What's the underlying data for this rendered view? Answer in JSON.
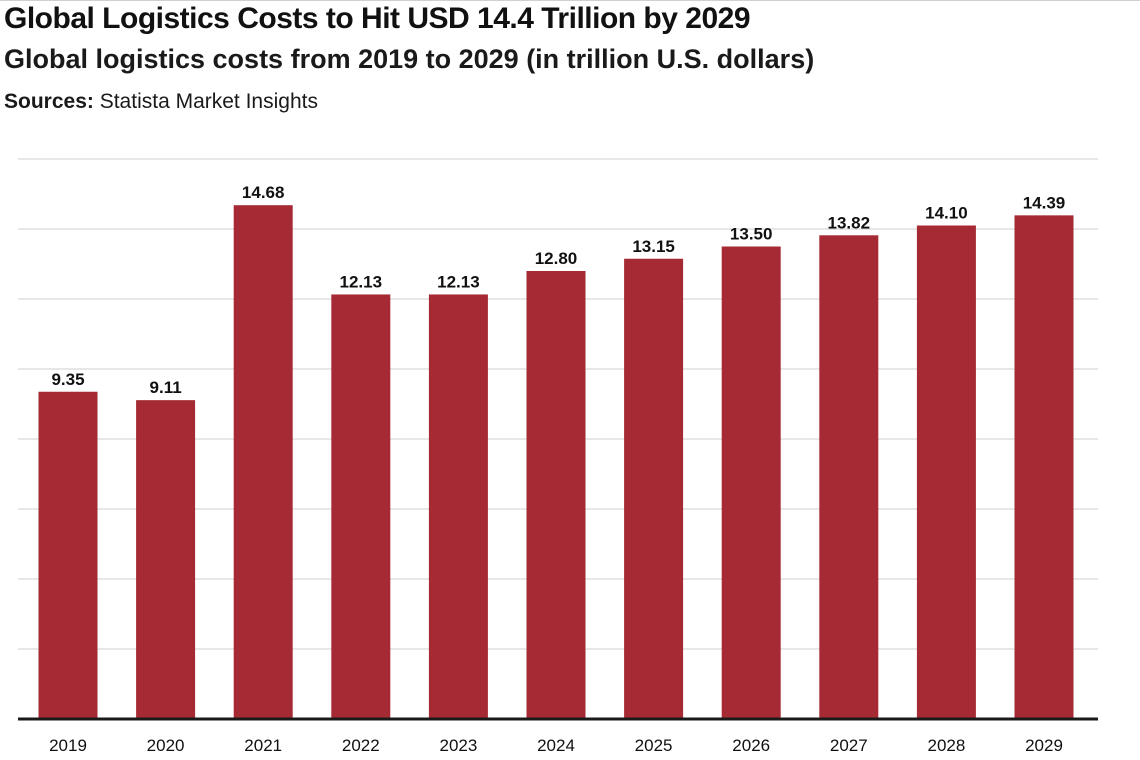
{
  "header": {
    "title": "Global Logistics Costs to Hit USD 14.4 Trillion by 2029",
    "subtitle": "Global logistics costs from 2019 to 2029 (in trillion U.S. dollars)",
    "sources_label": "Sources:",
    "sources_text": " Statista Market Insights"
  },
  "chart_data": {
    "type": "bar",
    "title": "Global Logistics Costs to Hit USD 14.4 Trillion by 2029",
    "subtitle": "Global logistics costs from 2019 to 2029 (in trillion U.S. dollars)",
    "xlabel": "",
    "ylabel": "",
    "categories": [
      "2019",
      "2020",
      "2021",
      "2022",
      "2023",
      "2024",
      "2025",
      "2026",
      "2027",
      "2028",
      "2029"
    ],
    "values": [
      9.35,
      9.11,
      14.68,
      12.13,
      12.13,
      12.8,
      13.15,
      13.5,
      13.82,
      14.1,
      14.39
    ],
    "data_labels": [
      "9.35",
      "9.11",
      "14.68",
      "12.13",
      "12.13",
      "12.80",
      "13.15",
      "13.50",
      "13.82",
      "14.10",
      "14.39"
    ],
    "ylim": [
      0,
      16
    ],
    "grid": true,
    "legend": "none",
    "bar_color": "#a52a33"
  }
}
